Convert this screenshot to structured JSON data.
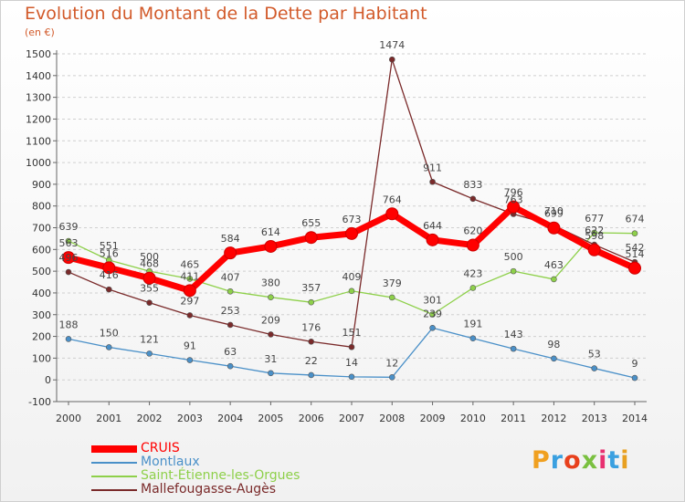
{
  "title": "Evolution du Montant de la Dette par Habitant",
  "subtitle": "(en €)",
  "logo": {
    "letters": [
      "P",
      "r",
      "o",
      "x",
      "i",
      "t",
      "i"
    ],
    "colors": [
      "#f0a020",
      "#3aa0e0",
      "#e8401c",
      "#7ac040",
      "#e83070",
      "#3aa0e0",
      "#e8a020"
    ]
  },
  "chart_data": {
    "type": "line",
    "x": [
      "2000",
      "2001",
      "2002",
      "2003",
      "2004",
      "2005",
      "2006",
      "2007",
      "2008",
      "2009",
      "2010",
      "2011",
      "2012",
      "2013",
      "2014"
    ],
    "ylim": [
      -100,
      1500
    ],
    "yticks": [
      "-100",
      "0",
      "100",
      "200",
      "300",
      "400",
      "500",
      "600",
      "700",
      "800",
      "900",
      "1000",
      "1100",
      "1200",
      "1300",
      "1400",
      "1500"
    ],
    "grid": "horizontal dashed",
    "legend_position": "bottom-left",
    "series": [
      {
        "name": "CRUIS",
        "color": "#ff0000",
        "values": [
          563,
          516,
          468,
          411,
          584,
          614,
          655,
          673,
          764,
          644,
          620,
          796,
          699,
          598,
          514
        ],
        "labels": [
          "563",
          "516",
          "468",
          "411",
          "584",
          "614",
          "655",
          "673",
          "764",
          "644",
          "620",
          "796",
          "699",
          "598",
          "514"
        ]
      },
      {
        "name": "Montlaux",
        "color": "#4a90c8",
        "values": [
          188,
          150,
          121,
          91,
          63,
          31,
          22,
          14,
          12,
          239,
          191,
          143,
          98,
          53,
          9
        ],
        "labels": [
          "188",
          "150",
          "121",
          "91",
          "63",
          "31",
          "22",
          "14",
          "12",
          "239",
          "191",
          "143",
          "98",
          "53",
          "9"
        ]
      },
      {
        "name": "Saint-Étienne-les-Orgues",
        "color": "#8ed04a",
        "values": [
          639,
          551,
          500,
          465,
          407,
          380,
          357,
          409,
          379,
          301,
          423,
          500,
          463,
          677,
          674
        ],
        "labels": [
          "639",
          "551",
          "500",
          "465",
          "407",
          "380",
          "357",
          "409",
          "379",
          "301",
          "423",
          "500",
          "463",
          "677",
          "674"
        ]
      },
      {
        "name": "Mallefougasse-Augès",
        "color": "#7a2a2a",
        "values": [
          496,
          416,
          355,
          297,
          253,
          209,
          176,
          151,
          1474,
          911,
          833,
          763,
          710,
          622,
          542
        ],
        "labels": [
          "496",
          "416",
          "355",
          "297",
          "253",
          "209",
          "176",
          "151",
          "1474",
          "911",
          "833",
          "763",
          "710",
          "622",
          "542"
        ]
      }
    ]
  }
}
